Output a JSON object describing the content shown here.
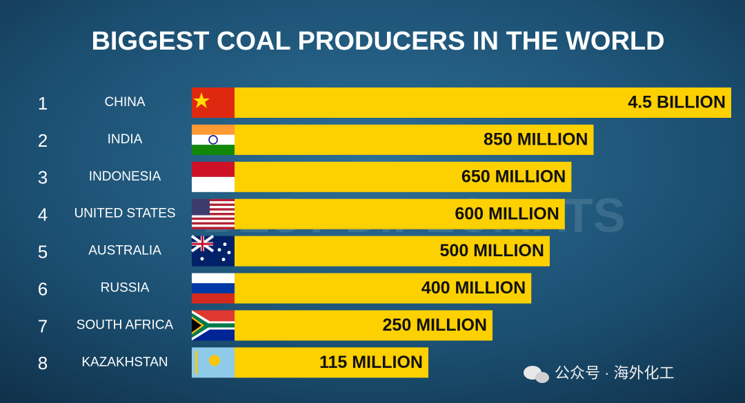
{
  "chart_data": {
    "type": "bar",
    "title": "BIGGEST COAL PRODUCERS IN THE WORLD",
    "ranks": [
      "1",
      "2",
      "3",
      "4",
      "5",
      "6",
      "7",
      "8"
    ],
    "categories": [
      "CHINA",
      "INDIA",
      "INDONESIA",
      "UNITED STATES",
      "AUSTRALIA",
      "RUSSIA",
      "SOUTH AFRICA",
      "KAZAKHSTAN"
    ],
    "values": [
      4500,
      850,
      650,
      600,
      500,
      400,
      250,
      115
    ],
    "value_labels": [
      "4.5 BILLION",
      "850 MILLION",
      "650 MILLION",
      "600 MILLION",
      "500 MILLION",
      "400 MILLION",
      "250 MILLION",
      "115 MILLION"
    ],
    "color": "#fdd000",
    "log_scale": true,
    "xlim": [
      11,
      4500
    ],
    "watermark": "BEST DIPLOMATS",
    "source_mark": "公众号 · 海外化工"
  }
}
